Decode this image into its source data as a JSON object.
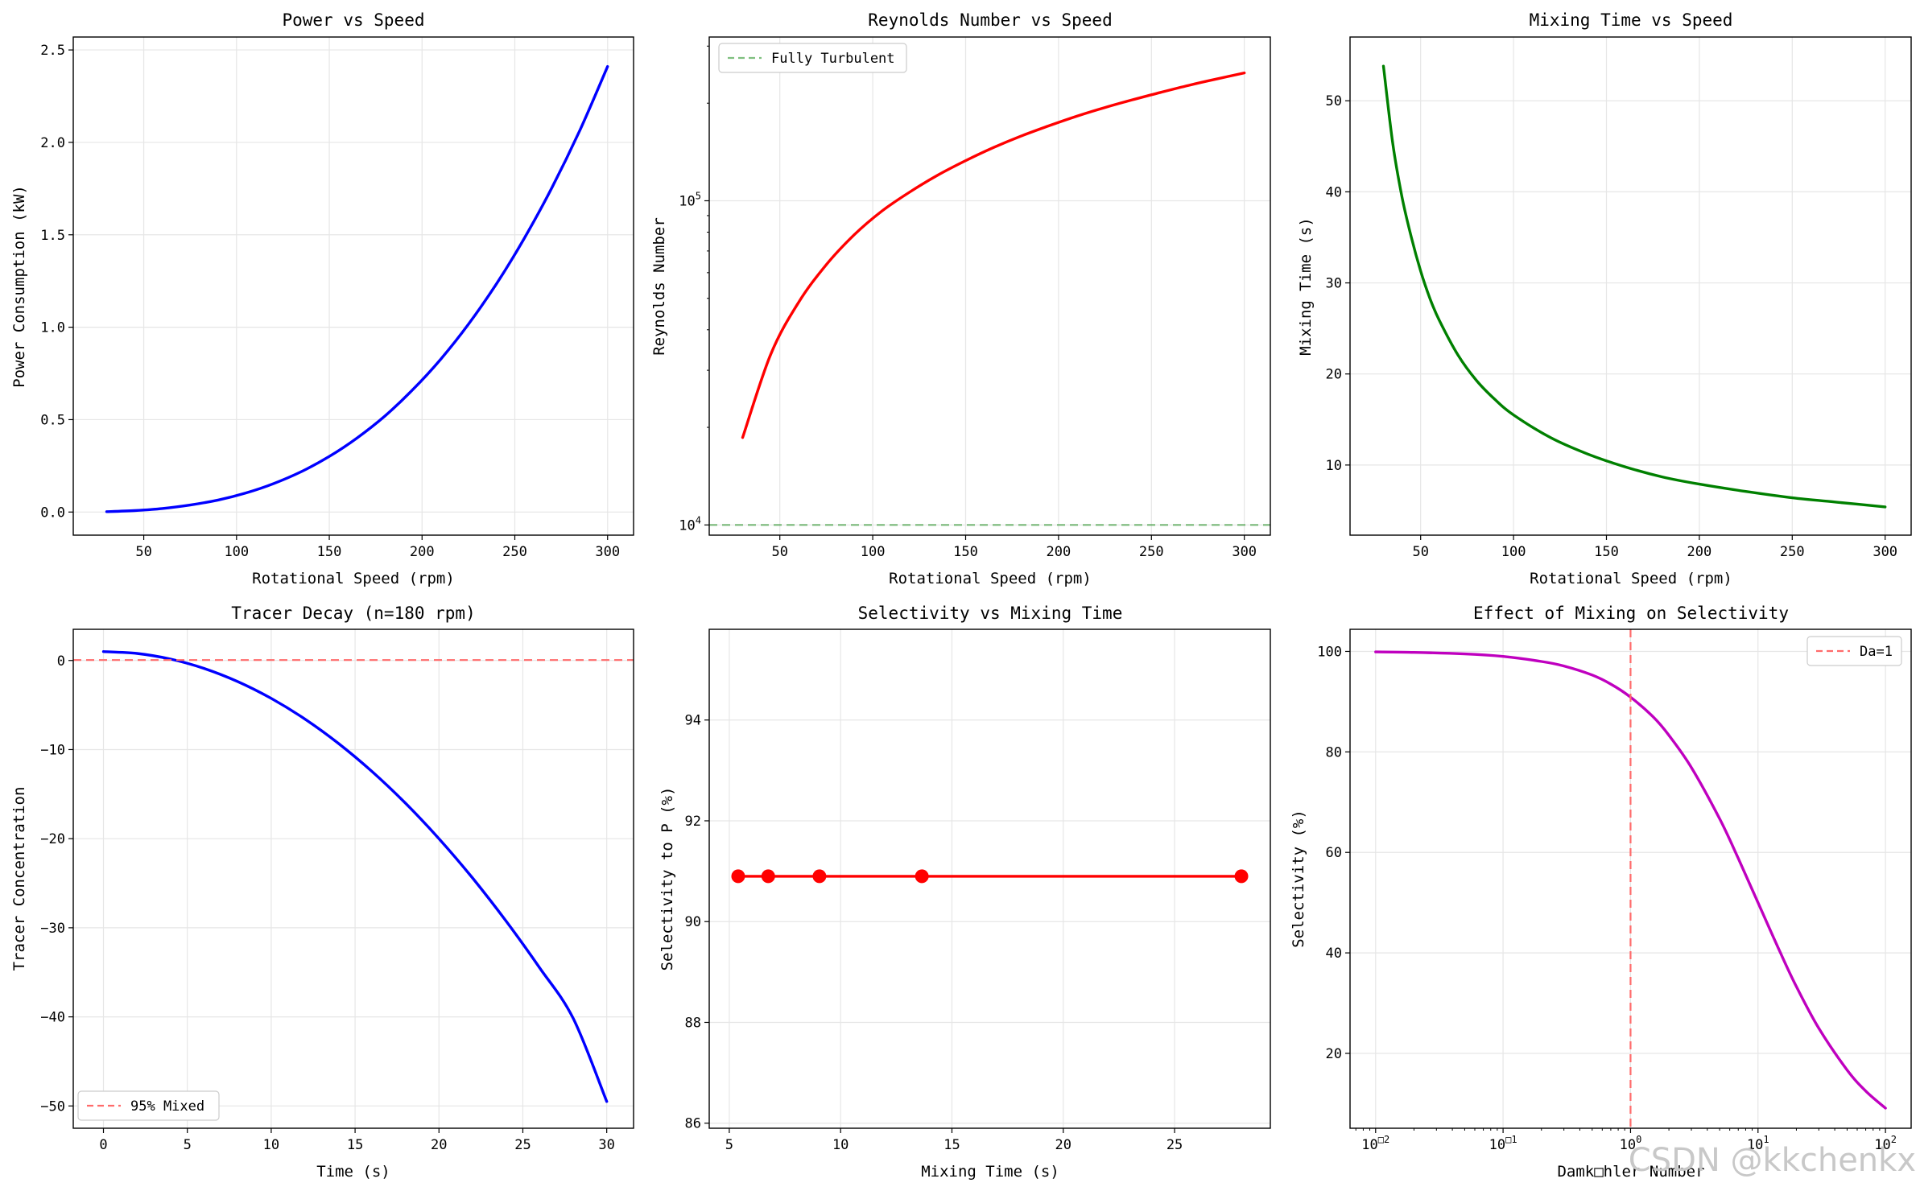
{
  "figure": {
    "watermark": "CSDN @kkchenkx"
  },
  "chart_data": [
    {
      "id": "p1",
      "type": "line",
      "title": "Power vs Speed",
      "xlabel": "Rotational Speed (rpm)",
      "ylabel": "Power Consumption (kW)",
      "xlim": [
        12,
        314
      ],
      "ylim": [
        -0.125,
        2.57
      ],
      "grid": true,
      "xticks": [
        50,
        100,
        150,
        200,
        250,
        300
      ],
      "xtick_labels": [
        "50",
        "100",
        "150",
        "200",
        "250",
        "300"
      ],
      "yticks": [
        0,
        0.5,
        1,
        1.5,
        2,
        2.5
      ],
      "ytick_labels": [
        "0.0",
        "0.5",
        "1.0",
        "1.5",
        "2.0",
        "2.5"
      ],
      "series": [
        {
          "color": "#0000ff",
          "x": [
            30,
            45,
            60,
            75,
            90,
            105,
            120,
            135,
            150,
            165,
            180,
            195,
            210,
            225,
            240,
            255,
            270,
            285,
            300
          ],
          "y": [
            0.002,
            0.008,
            0.019,
            0.038,
            0.065,
            0.103,
            0.154,
            0.219,
            0.301,
            0.401,
            0.52,
            0.662,
            0.826,
            1.016,
            1.233,
            1.479,
            1.755,
            2.064,
            2.41
          ]
        }
      ]
    },
    {
      "id": "p2",
      "type": "line",
      "title": "Reynolds Number vs Speed",
      "xlabel": "Rotational Speed (rpm)",
      "ylabel": "Reynolds Number",
      "xlim": [
        12,
        314
      ],
      "ylim": [
        9300,
        320000
      ],
      "yscale": "log",
      "grid": true,
      "xticks": [
        50,
        100,
        150,
        200,
        250,
        300
      ],
      "xtick_labels": [
        "50",
        "100",
        "150",
        "200",
        "250",
        "300"
      ],
      "yticks": [
        10000,
        100000
      ],
      "ytick_labels": [
        [
          "10",
          "4"
        ],
        [
          "10",
          "5"
        ]
      ],
      "legend": {
        "placement": "top-left",
        "entries": [
          {
            "label": "Fully Turbulent",
            "color": "#008000",
            "dash": true
          }
        ]
      },
      "series": [
        {
          "color": "#ff0000",
          "x": [
            30,
            45,
            60,
            75,
            90,
            105,
            120,
            135,
            150,
            165,
            180,
            195,
            210,
            225,
            240,
            255,
            270,
            285,
            300
          ],
          "y": [
            18600,
            33500,
            48500,
            63500,
            78500,
            93000,
            106500,
            120000,
            133000,
            146000,
            158500,
            170500,
            182500,
            194000,
            205000,
            216000,
            227000,
            237500,
            248000
          ]
        },
        {
          "name": "Fully Turbulent",
          "color": "#008000",
          "dash": true,
          "hline": 10000
        }
      ]
    },
    {
      "id": "p3",
      "type": "line",
      "title": "Mixing Time vs Speed",
      "xlabel": "Rotational Speed (rpm)",
      "ylabel": "Mixing Time (s)",
      "xlim": [
        12,
        314
      ],
      "ylim": [
        2.3,
        57
      ],
      "grid": true,
      "xticks": [
        50,
        100,
        150,
        200,
        250,
        300
      ],
      "xtick_labels": [
        "50",
        "100",
        "150",
        "200",
        "250",
        "300"
      ],
      "yticks": [
        10,
        20,
        30,
        40,
        50
      ],
      "ytick_labels": [
        "10",
        "20",
        "30",
        "40",
        "50"
      ],
      "series": [
        {
          "color": "#008000",
          "x": [
            30,
            35,
            40,
            45,
            50,
            55,
            60,
            70,
            80,
            90,
            100,
            120,
            140,
            160,
            180,
            200,
            225,
            250,
            275,
            300
          ],
          "y": [
            53.8,
            45.3,
            39.4,
            35.0,
            31.3,
            28.3,
            25.9,
            22.1,
            19.3,
            17.2,
            15.5,
            13.0,
            11.2,
            9.8,
            8.7,
            7.9,
            7.1,
            6.4,
            5.9,
            5.4
          ]
        }
      ]
    },
    {
      "id": "p4",
      "type": "line",
      "title": "Tracer Decay (n=180 rpm)",
      "xlabel": "Time (s)",
      "ylabel": "Tracer Concentration",
      "xlim": [
        -1.8,
        31.6
      ],
      "ylim": [
        -52.5,
        3.5
      ],
      "grid": true,
      "xticks": [
        0,
        5,
        10,
        15,
        20,
        25,
        30
      ],
      "xtick_labels": [
        "0",
        "5",
        "10",
        "15",
        "20",
        "25",
        "30"
      ],
      "yticks": [
        -50,
        -40,
        -30,
        -20,
        -10,
        0
      ],
      "ytick_labels": [
        "−50",
        "−40",
        "−30",
        "−20",
        "−10",
        "0"
      ],
      "legend": {
        "placement": "bottom-left",
        "entries": [
          {
            "label": "95% Mixed",
            "color": "#ff6b6b",
            "dash": true
          }
        ]
      },
      "series": [
        {
          "color": "#0000ff",
          "x": [
            0,
            2,
            4,
            6,
            8,
            10,
            12,
            14,
            16,
            18,
            20,
            22,
            24,
            26,
            28,
            30
          ],
          "y": [
            1.0,
            0.79,
            0.16,
            -0.89,
            -2.36,
            -4.25,
            -6.56,
            -9.29,
            -12.44,
            -16.01,
            -20.0,
            -24.41,
            -29.24,
            -34.49,
            -40.16,
            -49.5
          ]
        },
        {
          "name": "95% Mixed",
          "color": "#ff6b6b",
          "dash": true,
          "hline": 0.05
        }
      ]
    },
    {
      "id": "p5",
      "type": "line",
      "title": "Selectivity vs Mixing Time",
      "xlabel": "Mixing Time (s)",
      "ylabel": "Selectivity to P (%)",
      "xlim": [
        4.1,
        29.3
      ],
      "ylim": [
        85.9,
        95.8
      ],
      "grid": true,
      "xticks": [
        5,
        10,
        15,
        20,
        25
      ],
      "xtick_labels": [
        "5",
        "10",
        "15",
        "20",
        "25"
      ],
      "yticks": [
        86,
        88,
        90,
        92,
        94
      ],
      "ytick_labels": [
        "86",
        "88",
        "90",
        "92",
        "94"
      ],
      "series": [
        {
          "color": "#ff0000",
          "markers": true,
          "x": [
            5.4,
            6.75,
            9.05,
            13.65,
            28.0
          ],
          "y": [
            90.9,
            90.9,
            90.9,
            90.9,
            90.9
          ]
        }
      ]
    },
    {
      "id": "p6",
      "type": "line",
      "title": "Effect of Mixing on Selectivity",
      "xlabel": "Damk□hler Number",
      "ylabel": "Selectivity (%)",
      "xlim": [
        0.0063,
        159
      ],
      "xscale": "log",
      "ylim": [
        5.1,
        104.4
      ],
      "grid": true,
      "xticks": [
        0.01,
        0.1,
        1,
        10,
        100
      ],
      "xtick_labels": [
        [
          "10",
          "□2"
        ],
        [
          "10",
          "□1"
        ],
        [
          "10",
          "0"
        ],
        [
          "10",
          "1"
        ],
        [
          "10",
          "2"
        ]
      ],
      "yticks": [
        20,
        40,
        60,
        80,
        100
      ],
      "ytick_labels": [
        "20",
        "40",
        "60",
        "80",
        "100"
      ],
      "legend": {
        "placement": "top-right",
        "entries": [
          {
            "label": "Da=1",
            "color": "#ff6b6b",
            "dash": true
          }
        ]
      },
      "series": [
        {
          "color": "#bf00bf",
          "x": [
            0.01,
            0.02,
            0.05,
            0.1,
            0.2,
            0.3,
            0.5,
            0.7,
            1,
            1.5,
            2,
            3,
            5,
            7,
            10,
            15,
            20,
            30,
            50,
            70,
            100
          ],
          "y": [
            99.9,
            99.8,
            99.5,
            99.0,
            98.0,
            97.1,
            95.3,
            93.5,
            90.9,
            87.0,
            83.3,
            76.9,
            66.7,
            58.8,
            50.0,
            40.0,
            33.3,
            25.0,
            16.7,
            12.5,
            9.1
          ]
        },
        {
          "name": "Da=1",
          "color": "#ff6b6b",
          "dash": true,
          "vline": 1
        }
      ]
    }
  ]
}
